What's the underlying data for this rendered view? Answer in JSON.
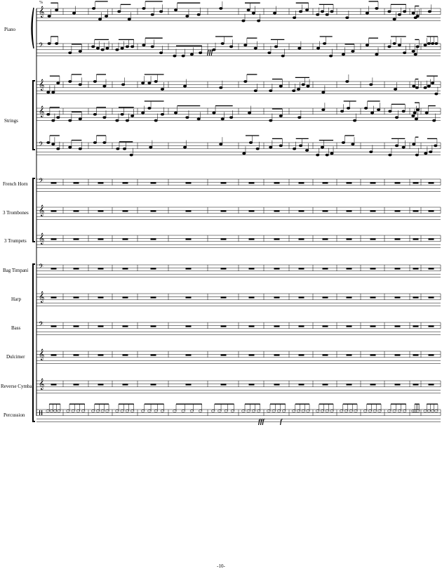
{
  "tempo_mark": "% ",
  "page_number": "-10-",
  "instruments": [
    {
      "name": "Piano",
      "staves": [
        "treble",
        "bass"
      ],
      "content": "notes"
    },
    {
      "name": "Strings",
      "staves": [
        "treble",
        "treble",
        "bass"
      ],
      "content": "notes"
    },
    {
      "name": "French Horn",
      "staves": [
        "bass"
      ],
      "content": "rests"
    },
    {
      "name": "3 Trombones",
      "staves": [
        "treble"
      ],
      "content": "rests"
    },
    {
      "name": "3 Trumpets",
      "staves": [
        "treble"
      ],
      "content": "rests"
    },
    {
      "name": "Bag Timpani",
      "staves": [
        "bass"
      ],
      "content": "rests"
    },
    {
      "name": "Harp",
      "staves": [
        "treble"
      ],
      "content": "rests"
    },
    {
      "name": "Bass",
      "staves": [
        "bass"
      ],
      "content": "rests"
    },
    {
      "name": "Dulcimer",
      "staves": [
        "treble"
      ],
      "content": "rests"
    },
    {
      "name": "Reverse Cymbal",
      "staves": [
        "treble"
      ],
      "content": "rests"
    },
    {
      "name": "Percussion",
      "staves": [
        "percussion"
      ],
      "content": "notes"
    }
  ],
  "dynamics": [
    {
      "text": "fff",
      "place": "piano-bass-measure-8"
    },
    {
      "text": "fff",
      "place": "percussion-measure-11"
    },
    {
      "text": "f",
      "place": "percussion-measure-11"
    }
  ],
  "measures_per_system": 17
}
